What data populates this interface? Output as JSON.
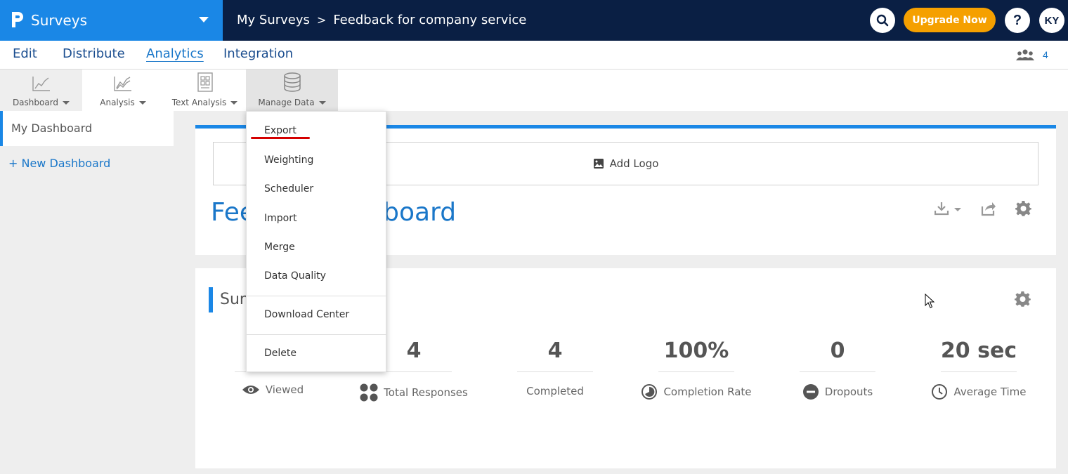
{
  "app": {
    "name": "Surveys"
  },
  "breadcrumb": {
    "root": "My Surveys",
    "separator": ">",
    "current": "Feedback for company service"
  },
  "header": {
    "upgrade_label": "Upgrade Now",
    "help_label": "?",
    "avatar_initials": "KY",
    "accent": "#1a87e6",
    "dark": "#0a1f44",
    "upgrade_color": "#f5a000"
  },
  "nav": {
    "tabs": [
      "Edit",
      "Distribute",
      "Analytics",
      "Integration"
    ],
    "active": "Analytics",
    "collaborators_count": "4"
  },
  "toolbar": {
    "items": [
      "Dashboard",
      "Analysis",
      "Text Analysis",
      "Manage Data"
    ]
  },
  "sidebar": {
    "my_dashboard": "My Dashboard",
    "new_dashboard": "+ New Dashboard"
  },
  "dashboard": {
    "add_logo": "Add Logo",
    "title": "Fee          ey - Dashboard"
  },
  "summary": {
    "title": "Sum",
    "stats": [
      {
        "value": "",
        "label": "Viewed",
        "icon": "eye-icon"
      },
      {
        "value": "4",
        "label": "Total Responses",
        "icon": "grid-dots-icon"
      },
      {
        "value": "4",
        "label": "Completed",
        "icon": ""
      },
      {
        "value": "100%",
        "label": "Completion Rate",
        "icon": "pie-icon"
      },
      {
        "value": "0",
        "label": "Dropouts",
        "icon": "minus-circle-icon"
      },
      {
        "value": "20 sec",
        "label": "Average Time",
        "icon": "clock-icon"
      }
    ]
  },
  "manage_data_menu": {
    "items": [
      "Export",
      "Weighting",
      "Scheduler",
      "Import",
      "Merge",
      "Data Quality",
      "Download Center",
      "Delete"
    ]
  }
}
